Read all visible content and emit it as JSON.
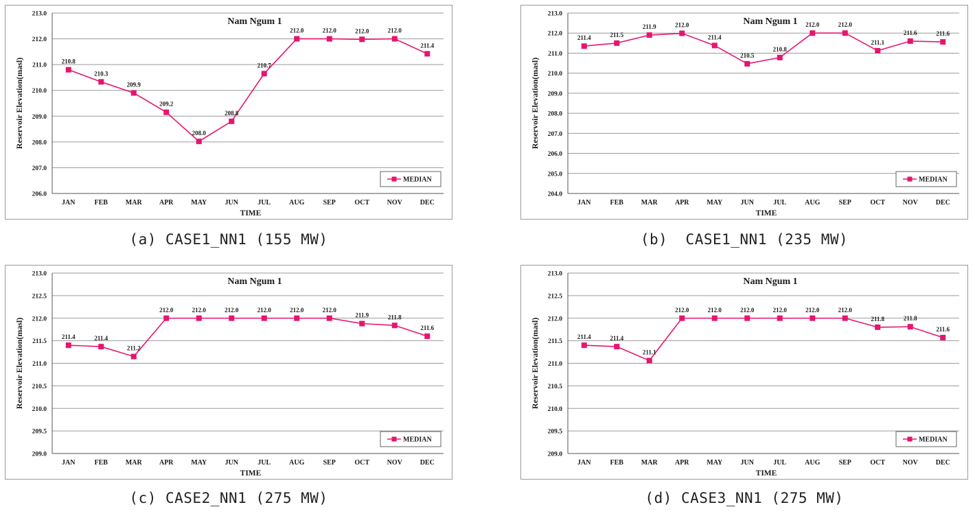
{
  "colors": {
    "series": "#e6156f",
    "grid": "#9a9a9a",
    "axis": "#555555",
    "text": "#1a1a1a"
  },
  "chart_data": [
    {
      "type": "line",
      "title": "Nam Ngum 1",
      "xlabel": "TIME",
      "ylabel": "Reservoir Elevation(masl)",
      "categories": [
        "JAN",
        "FEB",
        "MAR",
        "APR",
        "MAY",
        "JUN",
        "JUL",
        "AUG",
        "SEP",
        "OCT",
        "NOV",
        "DEC"
      ],
      "ylim": [
        206.0,
        213.0
      ],
      "yticks": [
        "206.0",
        "207.0",
        "208.0",
        "209.0",
        "210.0",
        "211.0",
        "212.0",
        "213.0"
      ],
      "series": [
        {
          "name": "MEDIAN",
          "values": [
            210.8,
            210.33,
            209.9,
            209.15,
            208.02,
            208.8,
            210.65,
            212.0,
            212.0,
            211.98,
            212.0,
            211.42
          ],
          "labels": [
            "210.8",
            "210.3",
            "209.9",
            "209.2",
            "208.0",
            "208.8",
            "210.7",
            "212.0",
            "212.0",
            "212.0",
            "212.0",
            "211.4"
          ]
        }
      ],
      "grid": true,
      "legend": "bottom-right",
      "caption": "(a) CASE1_NN1 (155 MW)"
    },
    {
      "type": "line",
      "title": "Nam Ngum 1",
      "xlabel": "TIME",
      "ylabel": "Reservoir Elevation(masl)",
      "categories": [
        "JAN",
        "FEB",
        "MAR",
        "APR",
        "MAY",
        "JUN",
        "JUL",
        "AUG",
        "SEP",
        "OCT",
        "NOV",
        "DEC"
      ],
      "ylim": [
        204.0,
        213.0
      ],
      "yticks": [
        "204.0",
        "205.0",
        "206.0",
        "207.0",
        "208.0",
        "209.0",
        "210.0",
        "211.0",
        "212.0",
        "213.0"
      ],
      "series": [
        {
          "name": "MEDIAN",
          "values": [
            211.35,
            211.5,
            211.9,
            211.99,
            211.38,
            210.47,
            210.78,
            212.0,
            212.0,
            211.12,
            211.6,
            211.56
          ],
          "labels": [
            "211.4",
            "211.5",
            "211.9",
            "212.0",
            "211.4",
            "210.5",
            "210.8",
            "212.0",
            "212.0",
            "211.1",
            "211.6",
            "211.6"
          ]
        }
      ],
      "grid": true,
      "legend": "bottom-right",
      "caption": "(b)  CASE1_NN1 (235 MW)"
    },
    {
      "type": "line",
      "title": "Nam Ngum 1",
      "xlabel": "TIME",
      "ylabel": "Reservoir Elevation(masl)",
      "categories": [
        "JAN",
        "FEB",
        "MAR",
        "APR",
        "MAY",
        "JUN",
        "JUL",
        "AUG",
        "SEP",
        "OCT",
        "NOV",
        "DEC"
      ],
      "ylim": [
        209.0,
        213.0
      ],
      "yticks": [
        "209.0",
        "209.5",
        "210.0",
        "210.5",
        "211.0",
        "211.5",
        "212.0",
        "212.5",
        "213.0"
      ],
      "series": [
        {
          "name": "MEDIAN",
          "values": [
            211.4,
            211.37,
            211.15,
            212.0,
            212.0,
            212.0,
            212.0,
            212.0,
            212.0,
            211.88,
            211.84,
            211.6
          ],
          "labels": [
            "211.4",
            "211.4",
            "211.2",
            "212.0",
            "212.0",
            "212.0",
            "212.0",
            "212.0",
            "212.0",
            "211.9",
            "211.8",
            "211.6"
          ]
        }
      ],
      "grid": true,
      "legend": "bottom-right",
      "caption": "(c) CASE2_NN1 (275 MW)"
    },
    {
      "type": "line",
      "title": "Nam Ngum 1",
      "xlabel": "TIME",
      "ylabel": "Reservoir Elevation(masl)",
      "categories": [
        "JAN",
        "FEB",
        "MAR",
        "APR",
        "MAY",
        "JUN",
        "JUL",
        "AUG",
        "SEP",
        "OCT",
        "NOV",
        "DEC"
      ],
      "ylim": [
        209.0,
        213.0
      ],
      "yticks": [
        "209.0",
        "209.5",
        "210.0",
        "210.5",
        "211.0",
        "211.5",
        "212.0",
        "212.5",
        "213.0"
      ],
      "series": [
        {
          "name": "MEDIAN",
          "values": [
            211.4,
            211.37,
            211.06,
            212.0,
            212.0,
            212.0,
            212.0,
            212.0,
            212.0,
            211.8,
            211.81,
            211.57
          ],
          "labels": [
            "211.4",
            "211.4",
            "211.1",
            "212.0",
            "212.0",
            "212.0",
            "212.0",
            "212.0",
            "212.0",
            "211.8",
            "211.8",
            "211.6"
          ]
        }
      ],
      "grid": true,
      "legend": "bottom-right",
      "caption": "(d) CASE3_NN1 (275 MW)"
    }
  ]
}
